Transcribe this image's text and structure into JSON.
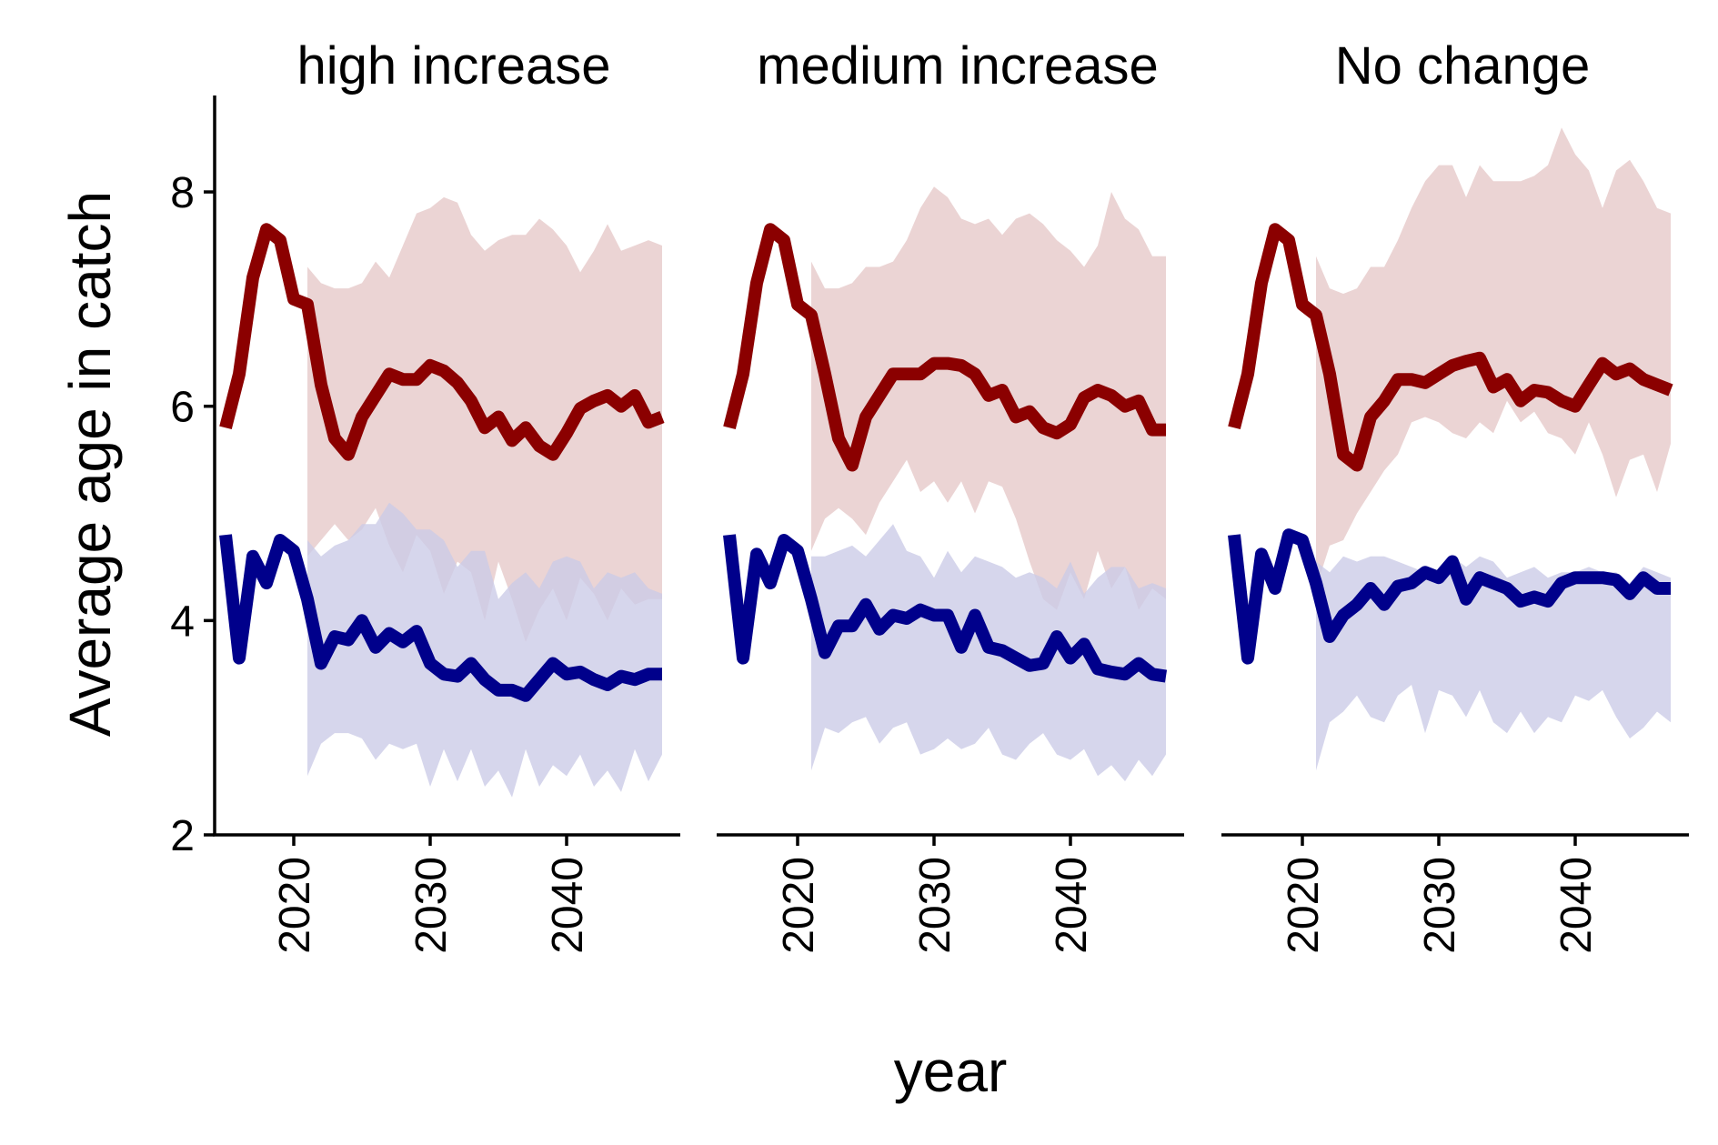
{
  "chart_data": {
    "type": "area",
    "xlabel": "year",
    "ylabel": "Average age in catch",
    "ylim": [
      2,
      8.9
    ],
    "xlim": [
      2014.2,
      2048.2
    ],
    "y_ticks": [
      2,
      4,
      6,
      8
    ],
    "x_ticks": [
      2020,
      2030,
      2040
    ],
    "legend": "none",
    "grid": false,
    "colors": {
      "red_line": "#8b0000",
      "red_band": "#e6c8c8",
      "blue_line": "#00008b",
      "blue_band": "#cacae7",
      "overlap_band": "#b8a6c1"
    },
    "panels": [
      {
        "title": "high increase",
        "years": [
          2015,
          2016,
          2017,
          2018,
          2019,
          2020,
          2021,
          2022,
          2023,
          2024,
          2025,
          2026,
          2027,
          2028,
          2029,
          2030,
          2031,
          2032,
          2033,
          2034,
          2035,
          2036,
          2037,
          2038,
          2039,
          2040,
          2041,
          2042,
          2043,
          2044,
          2045,
          2046,
          2047
        ],
        "series": [
          {
            "color": "red",
            "mean": [
              5.8,
              6.3,
              7.2,
              7.65,
              7.55,
              7.0,
              6.95,
              6.2,
              5.7,
              5.55,
              5.9,
              6.1,
              6.3,
              6.25,
              6.25,
              6.38,
              6.33,
              6.22,
              6.05,
              5.8,
              5.9,
              5.68,
              5.8,
              5.63,
              5.55,
              5.75,
              5.98,
              6.05,
              6.1,
              6.0,
              6.1,
              5.85,
              5.9
            ],
            "lower": [
              null,
              null,
              null,
              null,
              null,
              null,
              4.6,
              4.75,
              4.9,
              4.75,
              4.85,
              5.05,
              4.7,
              4.45,
              4.8,
              4.65,
              4.25,
              4.55,
              4.45,
              4.0,
              4.55,
              4.2,
              3.8,
              4.1,
              4.3,
              4.0,
              4.4,
              4.25,
              4.0,
              4.3,
              4.15,
              4.2,
              4.2
            ],
            "upper": [
              null,
              null,
              null,
              null,
              null,
              null,
              7.3,
              7.15,
              7.1,
              7.1,
              7.15,
              7.35,
              7.2,
              7.5,
              7.8,
              7.85,
              7.95,
              7.9,
              7.6,
              7.45,
              7.55,
              7.6,
              7.6,
              7.75,
              7.65,
              7.5,
              7.25,
              7.45,
              7.7,
              7.45,
              7.5,
              7.55,
              7.5
            ]
          },
          {
            "color": "blue",
            "mean": [
              4.8,
              3.65,
              4.6,
              4.35,
              4.75,
              4.65,
              4.2,
              3.6,
              3.85,
              3.82,
              4.0,
              3.75,
              3.88,
              3.8,
              3.9,
              3.6,
              3.5,
              3.48,
              3.6,
              3.45,
              3.35,
              3.35,
              3.3,
              3.45,
              3.6,
              3.5,
              3.52,
              3.45,
              3.4,
              3.48,
              3.45,
              3.5,
              3.5
            ],
            "lower": [
              null,
              null,
              null,
              null,
              null,
              null,
              2.55,
              2.85,
              2.95,
              2.95,
              2.9,
              2.7,
              2.85,
              2.8,
              2.85,
              2.45,
              2.8,
              2.5,
              2.8,
              2.45,
              2.6,
              2.35,
              2.8,
              2.45,
              2.65,
              2.55,
              2.75,
              2.45,
              2.6,
              2.4,
              2.8,
              2.5,
              2.75
            ],
            "upper": [
              null,
              null,
              null,
              null,
              null,
              null,
              4.75,
              4.6,
              4.7,
              4.75,
              4.9,
              4.9,
              5.1,
              5.0,
              4.85,
              4.85,
              4.75,
              4.5,
              4.65,
              4.65,
              4.2,
              4.35,
              4.45,
              4.3,
              4.55,
              4.6,
              4.55,
              4.3,
              4.45,
              4.4,
              4.45,
              4.3,
              4.25
            ]
          }
        ]
      },
      {
        "title": "medium increase",
        "years": [
          2015,
          2016,
          2017,
          2018,
          2019,
          2020,
          2021,
          2022,
          2023,
          2024,
          2025,
          2026,
          2027,
          2028,
          2029,
          2030,
          2031,
          2032,
          2033,
          2034,
          2035,
          2036,
          2037,
          2038,
          2039,
          2040,
          2041,
          2042,
          2043,
          2044,
          2045,
          2046,
          2047
        ],
        "series": [
          {
            "color": "red",
            "mean": [
              5.8,
              6.3,
              7.15,
              7.65,
              7.55,
              6.95,
              6.85,
              6.3,
              5.7,
              5.45,
              5.9,
              6.1,
              6.3,
              6.3,
              6.3,
              6.4,
              6.4,
              6.38,
              6.3,
              6.1,
              6.15,
              5.9,
              5.95,
              5.8,
              5.75,
              5.83,
              6.08,
              6.15,
              6.1,
              6.0,
              6.05,
              5.78,
              5.78
            ],
            "lower": [
              null,
              null,
              null,
              null,
              null,
              null,
              4.65,
              4.95,
              5.05,
              4.95,
              4.8,
              5.1,
              5.3,
              5.5,
              5.2,
              5.3,
              5.1,
              5.3,
              5.0,
              5.3,
              5.25,
              4.95,
              4.55,
              4.2,
              4.1,
              4.45,
              4.2,
              4.65,
              4.3,
              4.5,
              4.1,
              4.3,
              4.2
            ],
            "upper": [
              null,
              null,
              null,
              null,
              null,
              null,
              7.35,
              7.1,
              7.1,
              7.15,
              7.3,
              7.3,
              7.35,
              7.55,
              7.85,
              8.05,
              7.95,
              7.75,
              7.7,
              7.75,
              7.6,
              7.75,
              7.8,
              7.7,
              7.55,
              7.45,
              7.3,
              7.5,
              8.0,
              7.75,
              7.65,
              7.4,
              7.4
            ]
          },
          {
            "color": "blue",
            "mean": [
              4.8,
              3.65,
              4.62,
              4.35,
              4.75,
              4.65,
              4.2,
              3.7,
              3.95,
              3.95,
              4.15,
              3.92,
              4.05,
              4.02,
              4.1,
              4.05,
              4.05,
              3.75,
              4.05,
              3.75,
              3.72,
              3.65,
              3.58,
              3.6,
              3.85,
              3.65,
              3.78,
              3.55,
              3.52,
              3.5,
              3.6,
              3.5,
              3.48
            ],
            "lower": [
              null,
              null,
              null,
              null,
              null,
              null,
              2.6,
              3.0,
              2.95,
              3.05,
              3.1,
              2.85,
              3.0,
              3.05,
              2.75,
              2.8,
              2.9,
              2.8,
              2.85,
              3.0,
              2.75,
              2.7,
              2.85,
              2.95,
              2.75,
              2.7,
              2.8,
              2.55,
              2.65,
              2.5,
              2.7,
              2.55,
              2.75
            ],
            "upper": [
              null,
              null,
              null,
              null,
              null,
              null,
              4.6,
              4.6,
              4.65,
              4.7,
              4.6,
              4.75,
              4.9,
              4.65,
              4.6,
              4.4,
              4.65,
              4.45,
              4.6,
              4.55,
              4.5,
              4.4,
              4.45,
              4.4,
              4.3,
              4.55,
              4.25,
              4.4,
              4.5,
              4.5,
              4.3,
              4.35,
              4.3
            ]
          }
        ]
      },
      {
        "title": "No change",
        "years": [
          2015,
          2016,
          2017,
          2018,
          2019,
          2020,
          2021,
          2022,
          2023,
          2024,
          2025,
          2026,
          2027,
          2028,
          2029,
          2030,
          2031,
          2032,
          2033,
          2034,
          2035,
          2036,
          2037,
          2038,
          2039,
          2040,
          2041,
          2042,
          2043,
          2044,
          2045,
          2046,
          2047
        ],
        "series": [
          {
            "color": "red",
            "mean": [
              5.8,
              6.3,
              7.15,
              7.65,
              7.55,
              6.95,
              6.85,
              6.3,
              5.55,
              5.45,
              5.9,
              6.05,
              6.25,
              6.25,
              6.22,
              6.3,
              6.38,
              6.42,
              6.45,
              6.18,
              6.25,
              6.05,
              6.15,
              6.13,
              6.05,
              6.0,
              6.2,
              6.4,
              6.3,
              6.35,
              6.25,
              6.2,
              6.15
            ],
            "lower": [
              null,
              null,
              null,
              null,
              null,
              null,
              4.3,
              4.7,
              4.75,
              5.0,
              5.2,
              5.4,
              5.55,
              5.85,
              5.9,
              5.85,
              5.75,
              5.7,
              5.85,
              5.75,
              6.05,
              5.85,
              5.95,
              5.75,
              5.7,
              5.55,
              5.85,
              5.55,
              5.15,
              5.5,
              5.55,
              5.2,
              5.65
            ],
            "upper": [
              null,
              null,
              null,
              null,
              null,
              null,
              7.4,
              7.1,
              7.05,
              7.1,
              7.3,
              7.3,
              7.55,
              7.85,
              8.1,
              8.25,
              8.25,
              7.95,
              8.25,
              8.1,
              8.1,
              8.1,
              8.15,
              8.25,
              8.6,
              8.35,
              8.2,
              7.85,
              8.2,
              8.3,
              8.1,
              7.85,
              7.8
            ]
          },
          {
            "color": "blue",
            "mean": [
              4.8,
              3.65,
              4.62,
              4.3,
              4.8,
              4.75,
              4.35,
              3.85,
              4.05,
              4.15,
              4.3,
              4.15,
              4.32,
              4.35,
              4.45,
              4.4,
              4.55,
              4.2,
              4.4,
              4.35,
              4.3,
              4.18,
              4.22,
              4.18,
              4.35,
              4.4,
              4.4,
              4.4,
              4.38,
              4.25,
              4.4,
              4.3,
              4.3
            ],
            "lower": [
              null,
              null,
              null,
              null,
              null,
              null,
              2.6,
              3.05,
              3.15,
              3.3,
              3.1,
              3.05,
              3.3,
              3.4,
              2.95,
              3.35,
              3.3,
              3.1,
              3.35,
              3.05,
              2.95,
              3.15,
              2.95,
              3.1,
              3.05,
              3.3,
              3.25,
              3.35,
              3.1,
              2.9,
              3.0,
              3.15,
              3.05
            ],
            "upper": [
              null,
              null,
              null,
              null,
              null,
              null,
              4.55,
              4.45,
              4.6,
              4.55,
              4.6,
              4.6,
              4.55,
              4.5,
              4.45,
              4.45,
              4.6,
              4.5,
              4.6,
              4.55,
              4.4,
              4.45,
              4.5,
              4.4,
              4.45,
              4.45,
              4.5,
              4.45,
              4.45,
              4.35,
              4.5,
              4.45,
              4.4
            ]
          }
        ]
      }
    ]
  }
}
